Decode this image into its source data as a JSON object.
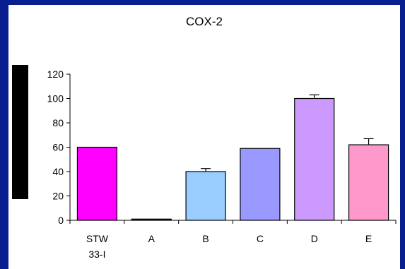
{
  "chart_data": {
    "type": "bar",
    "title": "COX-2",
    "categories": [
      [
        "STW",
        "33-I"
      ],
      [
        "A"
      ],
      [
        "B"
      ],
      [
        "C"
      ],
      [
        "D"
      ],
      [
        "E"
      ]
    ],
    "values": [
      60,
      1,
      40,
      59,
      100,
      62
    ],
    "error_bars": [
      0,
      0,
      2.5,
      0,
      3,
      5
    ],
    "ylim": [
      0,
      120
    ],
    "yticks": [
      "0",
      "20",
      "40",
      "60",
      "80",
      "100",
      "120"
    ],
    "colors": [
      "#ff00ff",
      "#1a1a1a",
      "#99ccff",
      "#9999ff",
      "#cc99ff",
      "#ff99cc"
    ],
    "grid": false
  },
  "colors": {
    "frame_background": "#0a1f8f",
    "panel_background": "#ffffff"
  }
}
